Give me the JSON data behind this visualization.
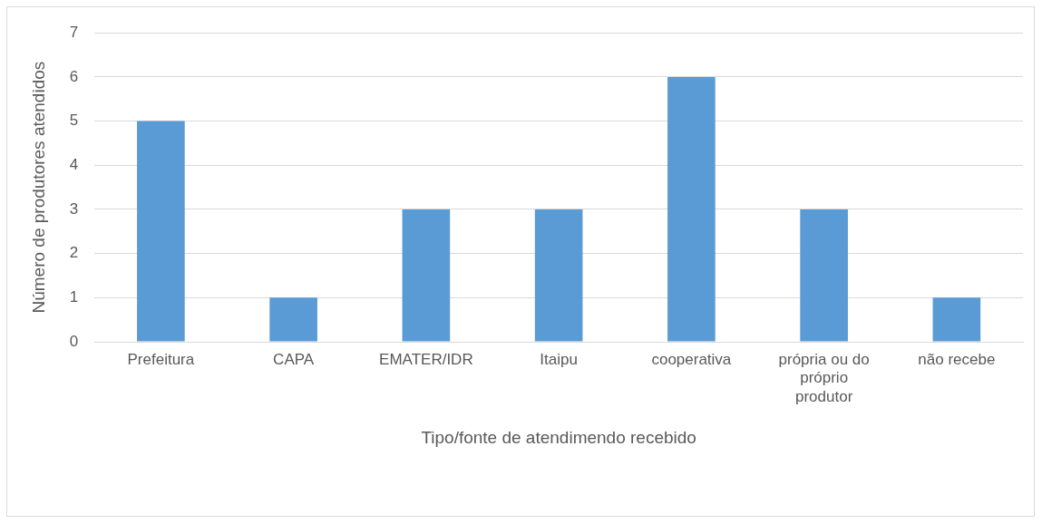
{
  "chart_data": {
    "type": "bar",
    "xlabel": "Tipo/fonte de atendimendo recebido",
    "ylabel": "Número de produtores atendidos",
    "categories": [
      "Prefeitura",
      "CAPA",
      "EMATER/IDR",
      "Itaipu",
      "cooperativa",
      "própria ou do próprio produtor",
      "não recebe"
    ],
    "values": [
      5,
      1,
      3,
      3,
      6,
      3,
      1
    ],
    "color": "#5b9bd5",
    "ylim": [
      0,
      7
    ],
    "yticks": [
      0,
      1,
      2,
      3,
      4,
      5,
      6,
      7
    ],
    "grid": "y",
    "legend": false
  }
}
